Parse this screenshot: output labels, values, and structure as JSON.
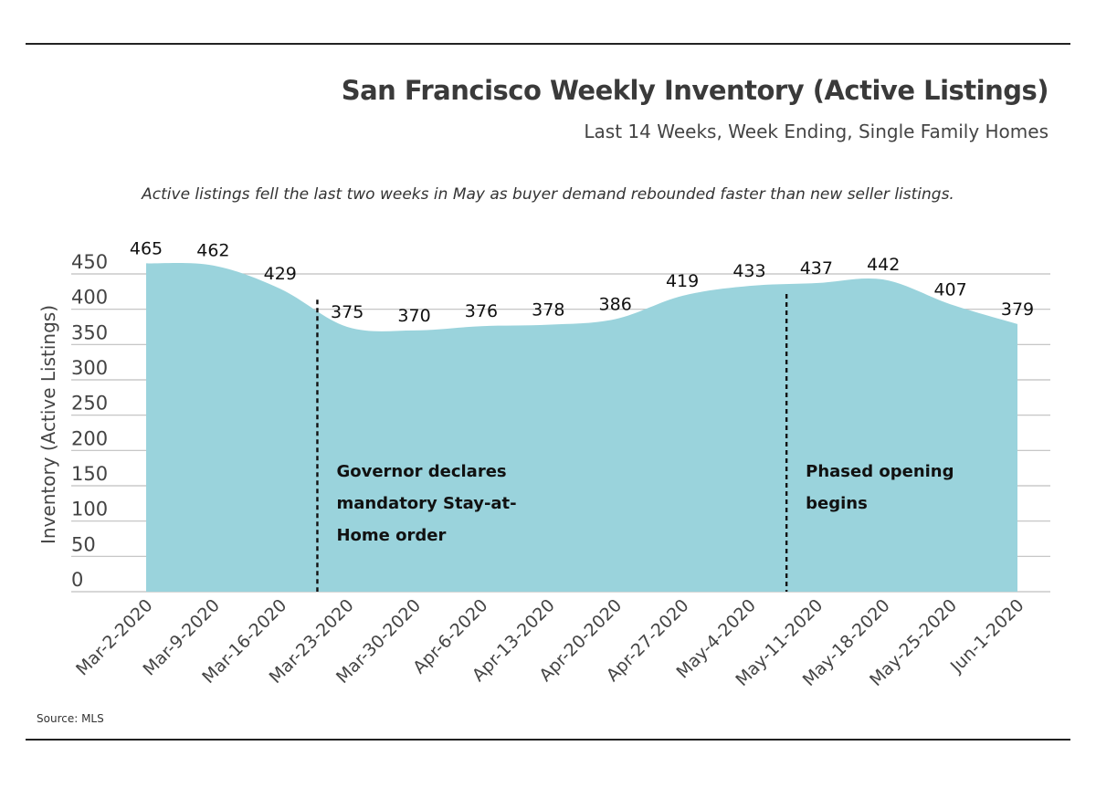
{
  "header": {
    "title": "San Francisco Weekly Inventory (Active Listings)",
    "subtitle": "Last 14 Weeks, Week Ending, Single Family Homes",
    "note": "Active listings fell the last two weeks in May as buyer demand rebounded faster than new seller listings."
  },
  "footer": {
    "source": "Source: MLS"
  },
  "chart_data": {
    "type": "area",
    "title": "San Francisco Weekly Inventory (Active Listings)",
    "subtitle": "Last 14 Weeks, Week Ending, Single Family Homes",
    "xlabel": "",
    "ylabel": "Inventory (Active Listings)",
    "ylim": [
      0,
      450
    ],
    "yticks": [
      0,
      50,
      100,
      150,
      200,
      250,
      300,
      350,
      400,
      450
    ],
    "grid": true,
    "fill_color": "#9ad3dc",
    "categories": [
      "Mar-2-2020",
      "Mar-9-2020",
      "Mar-16-2020",
      "Mar-23-2020",
      "Mar-30-2020",
      "Apr-6-2020",
      "Apr-13-2020",
      "Apr-20-2020",
      "Apr-27-2020",
      "May-4-2020",
      "May-11-2020",
      "May-18-2020",
      "May-25-2020",
      "Jun-1-2020"
    ],
    "values": [
      465,
      462,
      429,
      375,
      370,
      376,
      378,
      386,
      419,
      433,
      437,
      442,
      407,
      379
    ],
    "annotations": [
      {
        "between": [
          "Mar-16-2020",
          "Mar-23-2020"
        ],
        "lines": [
          "Governor declares",
          "mandatory Stay-at-",
          "Home order"
        ]
      },
      {
        "between": [
          "May-4-2020",
          "May-11-2020"
        ],
        "lines": [
          "Phased opening",
          "begins"
        ]
      }
    ]
  }
}
